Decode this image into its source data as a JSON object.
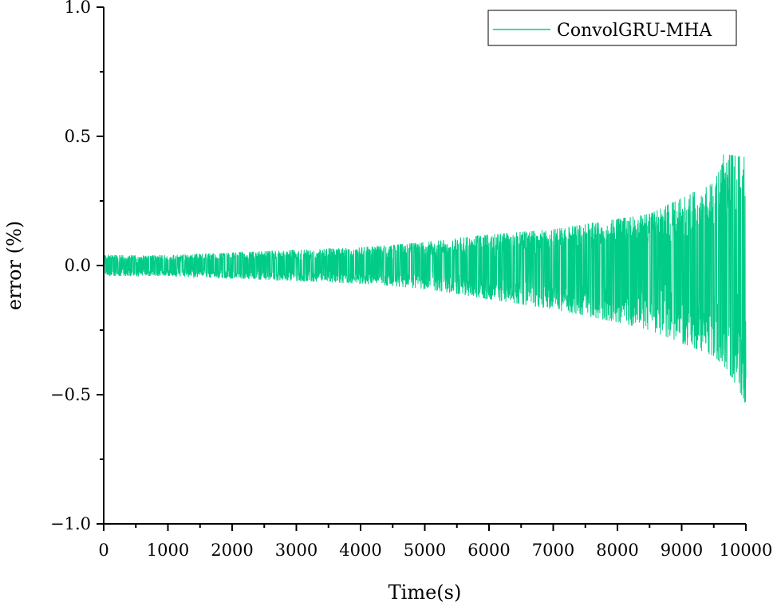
{
  "chart_data": {
    "type": "line",
    "xlabel": "Time(s)",
    "ylabel": "error (%)",
    "xlim": [
      0,
      10000
    ],
    "ylim": [
      -1.0,
      1.0
    ],
    "x_ticks": [
      0,
      1000,
      2000,
      3000,
      4000,
      5000,
      6000,
      7000,
      8000,
      9000,
      10000
    ],
    "x_tick_labels": [
      "0",
      "1000",
      "2000",
      "3000",
      "4000",
      "5000",
      "6000",
      "7000",
      "8000",
      "9000",
      "10000"
    ],
    "y_ticks": [
      1.0,
      0.5,
      0.0,
      -0.5,
      -1.0
    ],
    "y_tick_labels": [
      "1.0",
      "0.5",
      "0.0",
      "−0.5",
      "−1.0"
    ],
    "grid": false,
    "legend_position": "top-right",
    "series": [
      {
        "name": "ConvolGRU-MHA",
        "color": "#00cc88",
        "description_envelope": {
          "x": [
            0,
            1000,
            2000,
            3000,
            4000,
            5000,
            6000,
            7000,
            8000,
            8500,
            9000,
            9500,
            9700,
            10000
          ],
          "upper": [
            0.04,
            0.04,
            0.05,
            0.06,
            0.07,
            0.09,
            0.12,
            0.14,
            0.18,
            0.2,
            0.26,
            0.32,
            0.43,
            0.42
          ],
          "lower": [
            -0.04,
            -0.04,
            -0.05,
            -0.06,
            -0.07,
            -0.09,
            -0.13,
            -0.17,
            -0.22,
            -0.25,
            -0.3,
            -0.35,
            -0.4,
            -0.53
          ]
        },
        "extremes": [
          {
            "x": 9650,
            "y": 0.43
          },
          {
            "x": 9980,
            "y": -0.53
          },
          {
            "x": 5950,
            "y": -0.13
          }
        ]
      }
    ]
  }
}
